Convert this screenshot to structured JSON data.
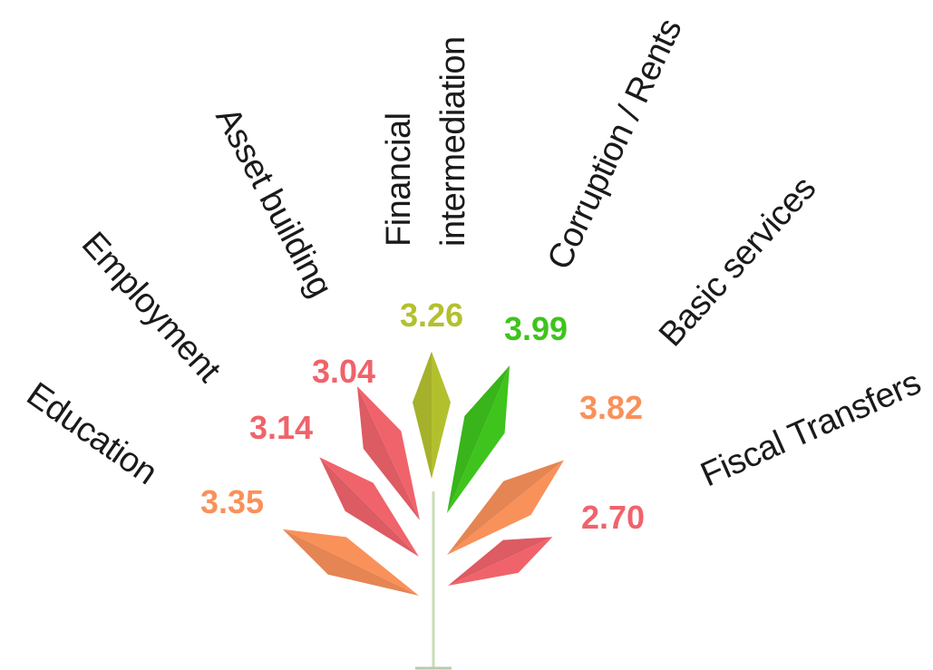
{
  "chart_data": {
    "type": "radial-leaf",
    "categories": [
      "Education",
      "Employment",
      "Asset building",
      "Financial\nintermediation",
      "Corruption / Rents",
      "Basic services",
      "Fiscal Transfers"
    ],
    "values": [
      3.35,
      3.14,
      3.04,
      3.26,
      3.99,
      3.82,
      2.7
    ],
    "value_labels": [
      "3.35",
      "3.14",
      "3.04",
      "3.26",
      "3.99",
      "3.82",
      "2.70"
    ],
    "colors": [
      "#f9915a",
      "#f0636b",
      "#f0636b",
      "#b3c02e",
      "#3ec41c",
      "#f9915a",
      "#f0636b"
    ]
  },
  "stem_color": "#c8ddb8"
}
